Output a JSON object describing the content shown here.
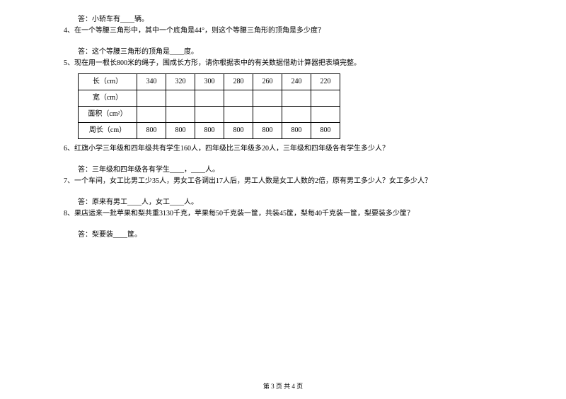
{
  "lines": {
    "ans3": "答：小轿车有____辆。",
    "q4": "4、在一个等腰三角形中，其中一个底角是44°，则这个等腰三角形的顶角是多少度？",
    "ans4": "答：这个等腰三角形的顶角是____度。",
    "q5": "5、现在用一根长800米的绳子，围成长方形，请你根据表中的有关数据借助计算器把表填完整。",
    "q6": "6、红旗小学三年级和四年级共有学生160人，四年级比三年级多20人，三年级和四年级各有学生多少人？",
    "ans6": "答：三年级和四年级各有学生____，____人。",
    "q7": "7、一个车间，女工比男工少35人，男女工各调出17人后，男工人数是女工人数的2倍，原有男工多少人？女工多少人？",
    "ans7": "答：原来有男工____人，女工____人。",
    "q8": "8、果店运来一批苹果和梨共重3130千克，苹果每50千克装一筐，共装45筐，梨每40千克装一筐，梨要装多少筐？",
    "ans8": "答：梨要装____筐。"
  },
  "table": {
    "headers": [
      "长（cm）",
      "宽（cm）",
      "面积（cm²）",
      "周长（cm）"
    ],
    "lengths": [
      "340",
      "320",
      "300",
      "280",
      "260",
      "240",
      "220"
    ],
    "widths": [
      "",
      "",
      "",
      "",
      "",
      "",
      ""
    ],
    "areas": [
      "",
      "",
      "",
      "",
      "",
      "",
      ""
    ],
    "perimeters": [
      "800",
      "800",
      "800",
      "800",
      "800",
      "800",
      "800"
    ]
  },
  "footer": "第 3 页 共 4 页"
}
